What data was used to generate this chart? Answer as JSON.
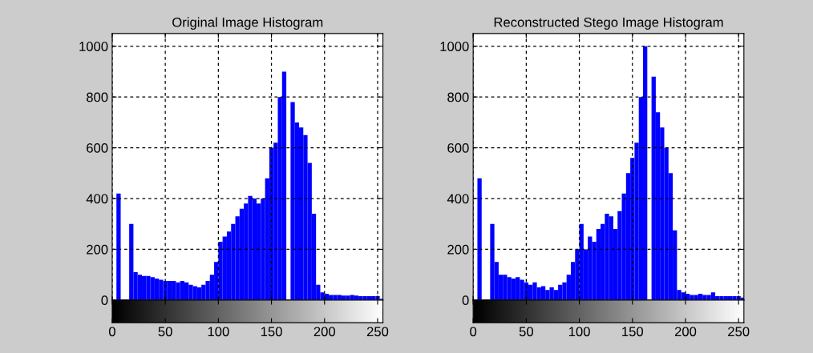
{
  "chart_data": [
    {
      "type": "histogram",
      "title": "Original Image Histogram",
      "color": "#0000ff",
      "grid": true,
      "bins": [
        0,
        4,
        8,
        12,
        16,
        20,
        24,
        28,
        32,
        36,
        40,
        44,
        48,
        52,
        56,
        60,
        64,
        68,
        72,
        76,
        80,
        84,
        88,
        92,
        96,
        100,
        104,
        108,
        112,
        116,
        120,
        124,
        128,
        132,
        136,
        140,
        144,
        148,
        152,
        156,
        160,
        164,
        168,
        172,
        176,
        180,
        184,
        188,
        192,
        196,
        200,
        204,
        208,
        212,
        216,
        220,
        224,
        228,
        232,
        236,
        240,
        244,
        248,
        252,
        256
      ],
      "values": [
        0,
        420,
        null,
        null,
        300,
        110,
        100,
        95,
        95,
        90,
        85,
        80,
        75,
        75,
        75,
        70,
        75,
        70,
        60,
        55,
        50,
        60,
        75,
        100,
        150,
        230,
        250,
        270,
        300,
        330,
        360,
        380,
        410,
        400,
        380,
        400,
        480,
        600,
        620,
        800,
        900,
        null,
        780,
        700,
        680,
        650,
        540,
        340,
        60,
        30,
        25,
        20,
        20,
        20,
        18,
        18,
        20,
        18,
        15,
        15,
        15,
        15,
        15,
        5
      ],
      "xlim": [
        0,
        255
      ],
      "ylim": [
        0,
        1050
      ],
      "xticks": [
        0,
        50,
        100,
        150,
        200,
        250
      ],
      "yticks": [
        0,
        200,
        400,
        600,
        800,
        1000
      ]
    },
    {
      "type": "histogram",
      "title": "Reconstructed Stego Image Histogram",
      "color": "#0000ff",
      "grid": true,
      "bins": [
        0,
        4,
        8,
        12,
        16,
        20,
        24,
        28,
        32,
        36,
        40,
        44,
        48,
        52,
        56,
        60,
        64,
        68,
        72,
        76,
        80,
        84,
        88,
        92,
        96,
        100,
        104,
        108,
        112,
        116,
        120,
        124,
        128,
        132,
        136,
        140,
        144,
        148,
        152,
        156,
        160,
        164,
        168,
        172,
        176,
        180,
        184,
        188,
        192,
        196,
        200,
        204,
        208,
        212,
        216,
        220,
        224,
        228,
        232,
        236,
        240,
        244,
        248,
        252,
        256
      ],
      "values": [
        null,
        480,
        null,
        null,
        300,
        150,
        100,
        100,
        90,
        85,
        90,
        80,
        70,
        60,
        70,
        50,
        55,
        40,
        50,
        40,
        60,
        70,
        100,
        150,
        200,
        300,
        200,
        250,
        230,
        280,
        300,
        340,
        330,
        280,
        350,
        420,
        500,
        560,
        620,
        800,
        1000,
        null,
        880,
        740,
        680,
        600,
        500,
        275,
        40,
        30,
        25,
        20,
        20,
        25,
        20,
        20,
        30,
        15,
        15,
        15,
        15,
        15,
        15,
        10
      ],
      "xlim": [
        0,
        255
      ],
      "ylim": [
        0,
        1050
      ],
      "xticks": [
        0,
        50,
        100,
        150,
        200,
        250
      ],
      "yticks": [
        0,
        200,
        400,
        600,
        800,
        1000
      ]
    }
  ]
}
